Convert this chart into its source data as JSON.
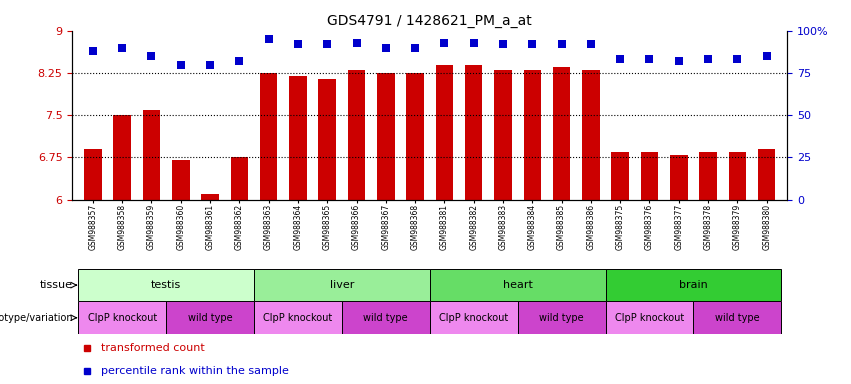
{
  "title": "GDS4791 / 1428621_PM_a_at",
  "samples": [
    "GSM988357",
    "GSM988358",
    "GSM988359",
    "GSM988360",
    "GSM988361",
    "GSM988362",
    "GSM988363",
    "GSM988364",
    "GSM988365",
    "GSM988366",
    "GSM988367",
    "GSM988368",
    "GSM988381",
    "GSM988382",
    "GSM988383",
    "GSM988384",
    "GSM988385",
    "GSM988386",
    "GSM988375",
    "GSM988376",
    "GSM988377",
    "GSM988378",
    "GSM988379",
    "GSM988380"
  ],
  "bar_values": [
    6.9,
    7.5,
    7.6,
    6.7,
    6.1,
    6.75,
    8.25,
    8.2,
    8.15,
    8.3,
    8.25,
    8.25,
    8.4,
    8.4,
    8.3,
    8.3,
    8.35,
    8.3,
    6.85,
    6.85,
    6.8,
    6.85,
    6.85,
    6.9
  ],
  "percentile_values": [
    88,
    90,
    85,
    80,
    80,
    82,
    95,
    92,
    92,
    93,
    90,
    90,
    93,
    93,
    92,
    92,
    92,
    92,
    83,
    83,
    82,
    83,
    83,
    85
  ],
  "ymin": 6.0,
  "ymax": 9.0,
  "yticks": [
    6.0,
    6.75,
    7.5,
    8.25,
    9.0
  ],
  "ytick_labels": [
    "6",
    "6.75",
    "7.5",
    "8.25",
    "9"
  ],
  "right_yticks": [
    0,
    25,
    50,
    75,
    100
  ],
  "right_ytick_labels": [
    "0",
    "25",
    "50",
    "75",
    "100%"
  ],
  "bar_color": "#cc0000",
  "dot_color": "#0000cc",
  "bg_color": "#ffffff",
  "tissue_colors": {
    "testis": "#ccffcc",
    "liver": "#99ee99",
    "heart": "#66dd66",
    "brain": "#33cc33"
  },
  "tissue_groups": [
    {
      "label": "testis",
      "start": 0,
      "end": 6
    },
    {
      "label": "liver",
      "start": 6,
      "end": 12
    },
    {
      "label": "heart",
      "start": 12,
      "end": 18
    },
    {
      "label": "brain",
      "start": 18,
      "end": 24
    }
  ],
  "geno_colors": {
    "ClpP knockout": "#ee88ee",
    "wild type": "#cc44cc"
  },
  "genotype_groups": [
    {
      "label": "ClpP knockout",
      "start": 0,
      "end": 3
    },
    {
      "label": "wild type",
      "start": 3,
      "end": 6
    },
    {
      "label": "ClpP knockout",
      "start": 6,
      "end": 9
    },
    {
      "label": "wild type",
      "start": 9,
      "end": 12
    },
    {
      "label": "ClpP knockout",
      "start": 12,
      "end": 15
    },
    {
      "label": "wild type",
      "start": 15,
      "end": 18
    },
    {
      "label": "ClpP knockout",
      "start": 18,
      "end": 21
    },
    {
      "label": "wild type",
      "start": 21,
      "end": 24
    }
  ],
  "left_label_color": "#cc0000",
  "right_label_color": "#0000cc",
  "bar_width": 0.6
}
